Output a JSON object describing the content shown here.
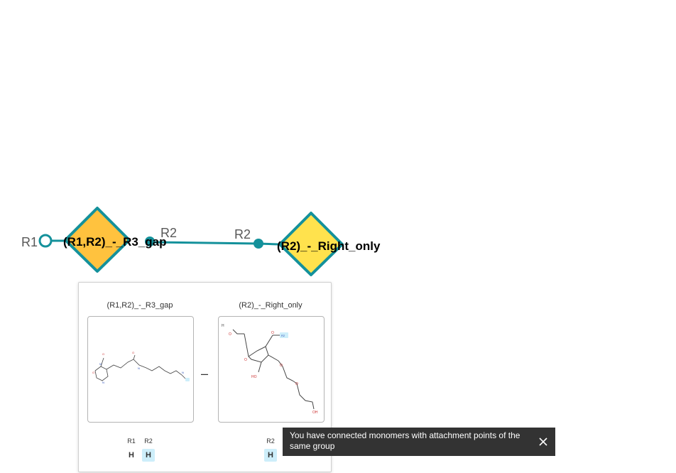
{
  "canvas": {
    "monomer1": {
      "name": "(R1,R2)_-_R3_gap",
      "color": "#ffc23e",
      "attachment_points": [
        "R1",
        "R2"
      ]
    },
    "monomer2": {
      "name": "(R2)_-_Right_only",
      "color": "#ffe24d",
      "attachment_points": [
        "R2"
      ]
    },
    "bond_color": "#14919b"
  },
  "preview": {
    "left": {
      "title": "(R1,R2)_-_R3_gap",
      "attachment_points": [
        {
          "name": "R1",
          "value": "H",
          "highlighted": false
        },
        {
          "name": "R2",
          "value": "H",
          "highlighted": true
        }
      ]
    },
    "separator": "–",
    "right": {
      "title": "(R2)_-_Right_only",
      "attachment_points": [
        {
          "name": "R2",
          "value": "H",
          "highlighted": true
        }
      ]
    }
  },
  "toast": {
    "message": "You have connected monomers with attachment points of the same group",
    "close_icon": "close-icon"
  }
}
